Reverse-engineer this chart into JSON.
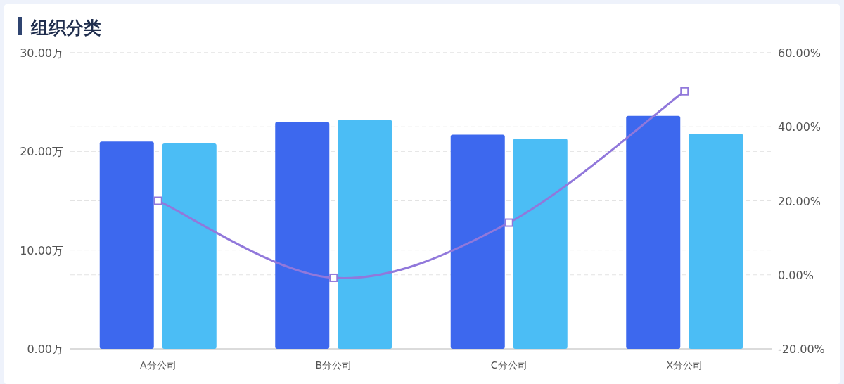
{
  "chart_data": {
    "type": "bar",
    "title": "组织分类",
    "categories": [
      "A分公司",
      "B分公司",
      "C分公司",
      "X分公司"
    ],
    "series": [
      {
        "color": "#3d68ee",
        "values": [
          21.0,
          23.0,
          21.7,
          23.6
        ]
      },
      {
        "color": "#4bbdf5",
        "values": [
          20.8,
          23.2,
          21.3,
          21.8
        ]
      },
      {
        "type": "line",
        "axis": "y2",
        "color": "#9178db",
        "marker": "square",
        "values": [
          20.0,
          -0.8,
          14.1,
          49.6
        ]
      }
    ],
    "ylim": [
      0,
      30
    ],
    "yticks": [
      {
        "value": 0,
        "label": "0.00万"
      },
      {
        "value": 10,
        "label": "10.00万"
      },
      {
        "value": 20,
        "label": "20.00万"
      },
      {
        "value": 30,
        "label": "30.00万"
      }
    ],
    "y2lim": [
      -20,
      60
    ],
    "y2ticks": [
      {
        "value": -20,
        "label": "-20.00%"
      },
      {
        "value": 0,
        "label": "0.00%"
      },
      {
        "value": 20,
        "label": "20.00%"
      },
      {
        "value": 40,
        "label": "40.00%"
      },
      {
        "value": 60,
        "label": "60.00%"
      }
    ],
    "grid": "y"
  }
}
